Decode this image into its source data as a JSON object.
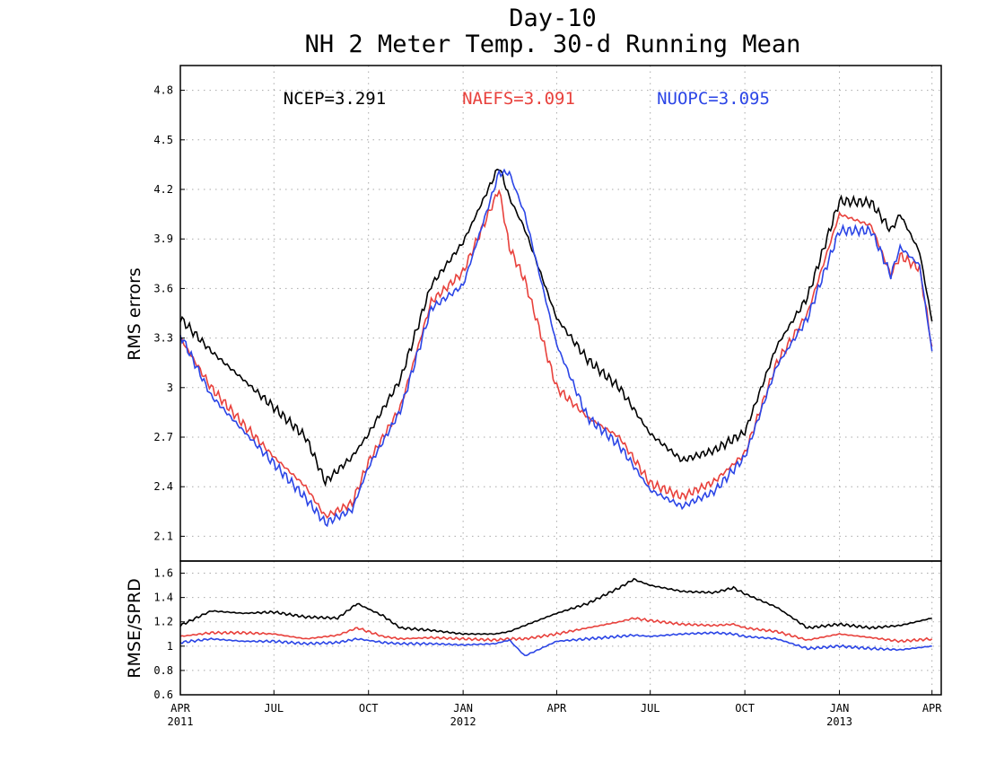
{
  "chart_data": [
    {
      "type": "line",
      "title": "Day-10",
      "subtitle": "NH 2 Meter Temp. 30-d Running Mean",
      "ylabel": "RMS errors",
      "xlabel": "",
      "ylim": [
        1.95,
        4.95
      ],
      "yticks": [
        "2.1",
        "2.4",
        "2.7",
        "3",
        "3.3",
        "3.6",
        "3.9",
        "4.2",
        "4.5",
        "4.8"
      ],
      "grid": true,
      "legend": "top",
      "x": [
        "2011-04-01",
        "2011-05-01",
        "2011-06-01",
        "2011-07-01",
        "2011-08-01",
        "2011-08-20",
        "2011-09-15",
        "2011-10-01",
        "2011-11-01",
        "2011-12-01",
        "2012-01-01",
        "2012-02-05",
        "2012-02-15",
        "2012-03-01",
        "2012-04-01",
        "2012-05-01",
        "2012-06-01",
        "2012-07-01",
        "2012-08-01",
        "2012-09-01",
        "2012-10-01",
        "2012-11-01",
        "2012-12-01",
        "2013-01-01",
        "2013-02-01",
        "2013-02-20",
        "2013-03-01",
        "2013-03-20",
        "2013-04-01"
      ],
      "series": [
        {
          "name": "NCEP",
          "stat": "NCEP=3.291",
          "color": "#000000",
          "values": [
            3.42,
            3.22,
            3.05,
            2.88,
            2.7,
            2.43,
            2.58,
            2.72,
            3.05,
            3.62,
            3.88,
            4.34,
            4.15,
            3.96,
            3.42,
            3.17,
            3.0,
            2.72,
            2.56,
            2.62,
            2.73,
            3.25,
            3.55,
            4.13,
            4.12,
            3.95,
            4.05,
            3.82,
            3.4
          ]
        },
        {
          "name": "NAEFS",
          "stat": "NAEFS=3.091",
          "color": "#e8413c",
          "values": [
            3.3,
            3.0,
            2.78,
            2.58,
            2.4,
            2.22,
            2.3,
            2.55,
            2.88,
            3.52,
            3.7,
            4.2,
            3.85,
            3.65,
            3.0,
            2.82,
            2.7,
            2.42,
            2.34,
            2.43,
            2.6,
            3.15,
            3.45,
            4.05,
            3.98,
            3.68,
            3.8,
            3.72,
            3.25
          ]
        },
        {
          "name": "NUOPC",
          "stat": "NUOPC=3.095",
          "color": "#2b45e6",
          "values": [
            3.32,
            2.95,
            2.74,
            2.54,
            2.33,
            2.18,
            2.26,
            2.52,
            2.86,
            3.48,
            3.62,
            4.3,
            4.3,
            4.05,
            3.26,
            2.82,
            2.65,
            2.38,
            2.28,
            2.37,
            2.58,
            3.13,
            3.42,
            3.95,
            3.95,
            3.68,
            3.85,
            3.74,
            3.22
          ]
        }
      ]
    },
    {
      "type": "line",
      "ylabel": "RMSE/SPRD",
      "ylim": [
        0.6,
        1.7
      ],
      "yticks": [
        "0.6",
        "0.8",
        "1",
        "1.2",
        "1.4",
        "1.6"
      ],
      "grid": true,
      "x": [
        "2011-04-01",
        "2011-05-01",
        "2011-06-01",
        "2011-07-01",
        "2011-08-01",
        "2011-09-01",
        "2011-09-20",
        "2011-10-15",
        "2011-11-01",
        "2011-12-01",
        "2012-01-01",
        "2012-02-01",
        "2012-02-15",
        "2012-03-01",
        "2012-04-01",
        "2012-05-01",
        "2012-06-01",
        "2012-06-15",
        "2012-07-01",
        "2012-08-01",
        "2012-09-01",
        "2012-09-20",
        "2012-10-01",
        "2012-11-01",
        "2012-12-01",
        "2013-01-01",
        "2013-02-01",
        "2013-03-01",
        "2013-04-01"
      ],
      "series": [
        {
          "name": "NCEP",
          "color": "#000000",
          "values": [
            1.17,
            1.29,
            1.27,
            1.28,
            1.24,
            1.23,
            1.35,
            1.25,
            1.15,
            1.13,
            1.1,
            1.1,
            1.12,
            1.17,
            1.27,
            1.35,
            1.48,
            1.55,
            1.5,
            1.45,
            1.44,
            1.48,
            1.43,
            1.32,
            1.15,
            1.18,
            1.15,
            1.17,
            1.23
          ]
        },
        {
          "name": "NAEFS",
          "color": "#e8413c",
          "values": [
            1.08,
            1.11,
            1.11,
            1.1,
            1.06,
            1.09,
            1.15,
            1.08,
            1.06,
            1.07,
            1.06,
            1.05,
            1.06,
            1.06,
            1.1,
            1.15,
            1.2,
            1.23,
            1.21,
            1.18,
            1.17,
            1.18,
            1.15,
            1.12,
            1.05,
            1.1,
            1.07,
            1.04,
            1.06
          ]
        },
        {
          "name": "NUOPC",
          "color": "#2b45e6",
          "values": [
            1.03,
            1.06,
            1.04,
            1.04,
            1.02,
            1.03,
            1.06,
            1.03,
            1.02,
            1.02,
            1.01,
            1.02,
            1.05,
            0.92,
            1.04,
            1.06,
            1.08,
            1.09,
            1.08,
            1.1,
            1.11,
            1.1,
            1.08,
            1.06,
            0.98,
            1.0,
            0.98,
            0.97,
            1.0
          ]
        }
      ]
    }
  ],
  "x_axis": {
    "start": "2011-04-01",
    "end": "2013-04-10",
    "ticks": [
      {
        "date": "2011-04-01",
        "label": "APR",
        "year": "2011"
      },
      {
        "date": "2011-07-01",
        "label": "JUL",
        "year": ""
      },
      {
        "date": "2011-10-01",
        "label": "OCT",
        "year": ""
      },
      {
        "date": "2012-01-01",
        "label": "JAN",
        "year": "2012"
      },
      {
        "date": "2012-04-01",
        "label": "APR",
        "year": ""
      },
      {
        "date": "2012-07-01",
        "label": "JUL",
        "year": ""
      },
      {
        "date": "2012-10-01",
        "label": "OCT",
        "year": ""
      },
      {
        "date": "2013-01-01",
        "label": "JAN",
        "year": "2013"
      },
      {
        "date": "2013-04-01",
        "label": "APR",
        "year": ""
      }
    ]
  }
}
